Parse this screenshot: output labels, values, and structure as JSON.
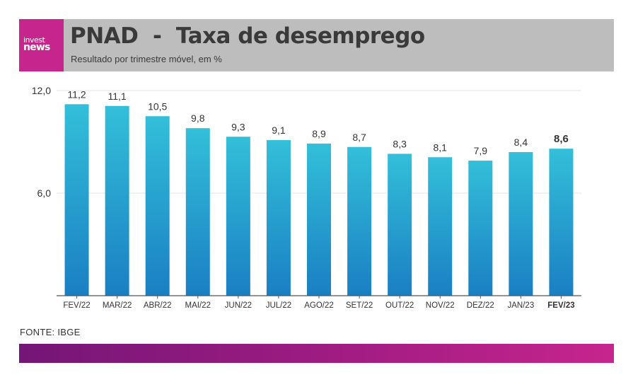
{
  "header": {
    "logo_line1": "invest",
    "logo_line2": "news",
    "title": "PNAD  -  Taxa de desemprego",
    "subtitle": "Resultado por trimestre móvel, em %"
  },
  "source": "FONTE: IBGE",
  "colors": {
    "bar_top": "#33bfd9",
    "bar_bottom": "#1a7fc3",
    "header_bg": "#bdbdbd",
    "brand": "#c6258d"
  },
  "chart_data": {
    "type": "bar",
    "title": "PNAD  -  Taxa de desemprego",
    "subtitle": "Resultado por trimestre móvel, em %",
    "categories": [
      "FEV/22",
      "MAR/22",
      "ABR/22",
      "MAI/22",
      "JUN/22",
      "JUL/22",
      "AGO/22",
      "SET/22",
      "OUT/22",
      "NOV/22",
      "DEZ/22",
      "JAN/23",
      "FEV/23"
    ],
    "values": [
      11.2,
      11.1,
      10.5,
      9.8,
      9.3,
      9.1,
      8.9,
      8.7,
      8.3,
      8.1,
      7.9,
      8.4,
      8.6
    ],
    "value_labels": [
      "11,2",
      "11,1",
      "10,5",
      "9,8",
      "9,3",
      "9,1",
      "8,9",
      "8,7",
      "8,3",
      "8,1",
      "7,9",
      "8,4",
      "8,6"
    ],
    "highlight_index": 12,
    "ylim": [
      0,
      12
    ],
    "yticks": [
      6,
      12
    ],
    "ytick_labels": [
      "6,0",
      "12,0"
    ],
    "xlabel": "",
    "ylabel": "",
    "grid": true
  }
}
